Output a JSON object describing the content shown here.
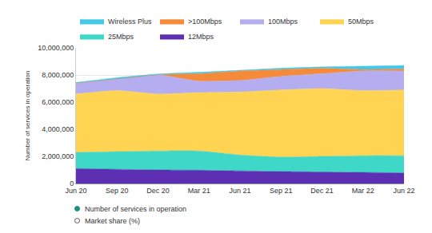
{
  "chart_data": {
    "type": "area",
    "stacked": true,
    "ylabel": "Number of services in operation",
    "categories": [
      "Jun 20",
      "Sep 20",
      "Dec 20",
      "Mar 21",
      "Jun 21",
      "Sep 21",
      "Dec 21",
      "Mar 22",
      "Jun 22"
    ],
    "series": [
      {
        "name": "12Mbps",
        "color": "#5c2fb3",
        "values": [
          1100000,
          1050000,
          1000000,
          980000,
          930000,
          880000,
          850000,
          820000,
          780000
        ]
      },
      {
        "name": "25Mbps",
        "color": "#3fd8c8",
        "values": [
          1200000,
          1300000,
          1400000,
          1420000,
          1170000,
          1070000,
          1150000,
          1230000,
          1270000
        ]
      },
      {
        "name": "50Mbps",
        "color": "#ffd452",
        "values": [
          4300000,
          4500000,
          4200000,
          4300000,
          4650000,
          4950000,
          5000000,
          4800000,
          4850000
        ]
      },
      {
        "name": "100Mbps",
        "color": "#b4aef0",
        "values": [
          800000,
          850000,
          1400000,
          850000,
          850000,
          1000000,
          1100000,
          1450000,
          1400000
        ]
      },
      {
        "name": ">100Mbps",
        "color": "#f48a3a",
        "values": [
          0,
          0,
          20000,
          550000,
          700000,
          500000,
          400000,
          100000,
          150000
        ]
      },
      {
        "name": "Wireless Plus",
        "color": "#45c8e8",
        "values": [
          50000,
          100000,
          50000,
          100000,
          50000,
          100000,
          100000,
          250000,
          250000
        ]
      }
    ],
    "ylim": [
      0,
      10000000
    ],
    "yticks": [
      0,
      {
        "value": 2000000,
        "label": "2,000,000"
      },
      {
        "value": 4000000,
        "label": "4,000,000"
      },
      {
        "value": 6000000,
        "label": "6,000,000"
      },
      {
        "value": 8000000,
        "label": "8,000,000"
      },
      {
        "value": 10000000,
        "label": "10,000,000"
      }
    ],
    "grid": true,
    "legend": "top",
    "annotations": [
      "Number of services in operation",
      "Market share (%)"
    ]
  }
}
